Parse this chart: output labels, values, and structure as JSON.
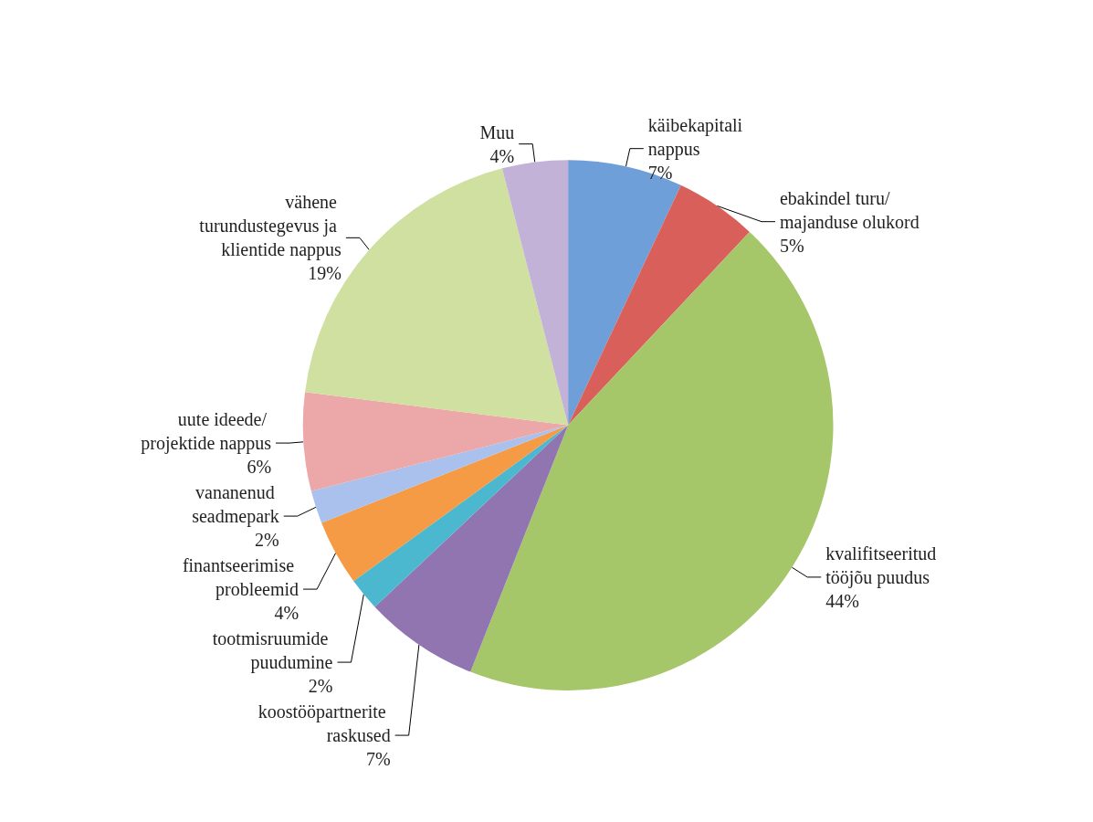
{
  "chart_data": {
    "type": "pie",
    "categories": [
      "käibekapitali nappus",
      "ebakindel turu/ majanduse olukord",
      "kvalifitseeritud tööjõu puudus",
      "koostööpartnerite raskused",
      "tootmisruumide puudumine",
      "finantseerimise probleemid",
      "vananenud seadmepark",
      "uute ideede/ projektide nappus",
      "vähene turundustegevus ja klientide nappus",
      "Muu"
    ],
    "values": [
      7,
      5,
      44,
      7,
      2,
      4,
      2,
      6,
      19,
      4
    ],
    "value_labels": [
      "7%",
      "5%",
      "44%",
      "7%",
      "2%",
      "4%",
      "2%",
      "6%",
      "19%",
      "4%"
    ],
    "colors": [
      "#6f9fd8",
      "#d9605a",
      "#a6c66a",
      "#9075b0",
      "#4cb8cf",
      "#f59a45",
      "#a9c1ec",
      "#eca8a8",
      "#cfe0a0",
      "#c3b2d8"
    ],
    "legend": false
  }
}
